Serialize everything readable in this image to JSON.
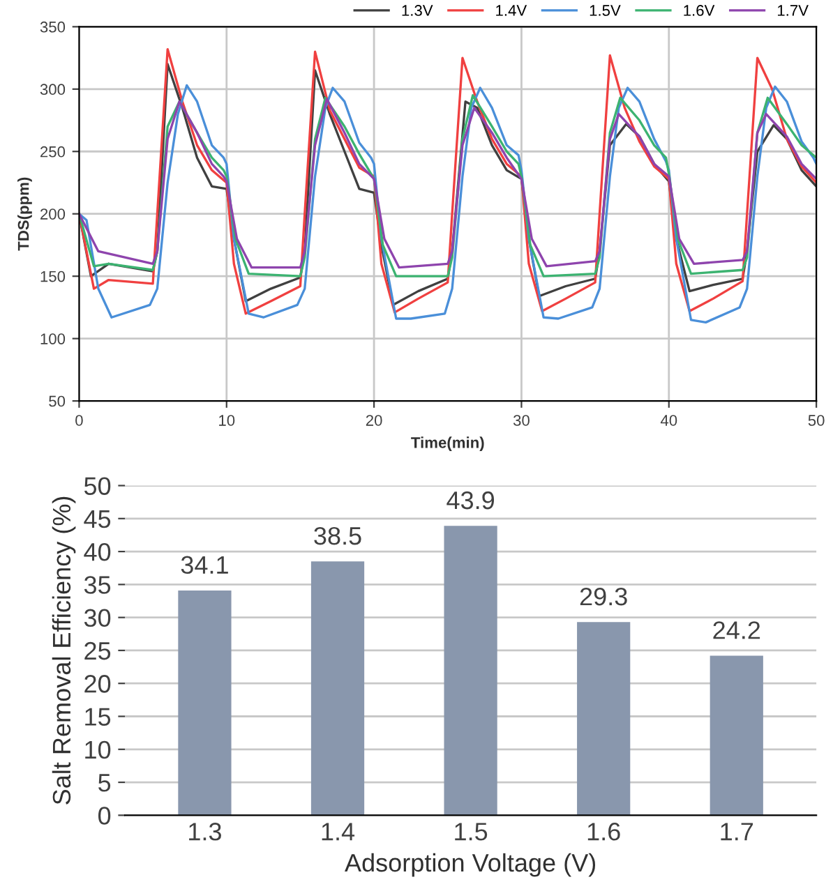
{
  "chart_data": [
    {
      "type": "line",
      "xlabel": "Time(min)",
      "ylabel": "TDS(ppm)",
      "xlim": [
        0,
        50
      ],
      "xticks": [
        0,
        10,
        20,
        30,
        40,
        50
      ],
      "ylim": [
        50,
        350
      ],
      "yticks": [
        50,
        100,
        150,
        200,
        250,
        300,
        350
      ],
      "grid": true,
      "legend": "top right",
      "marker": "none",
      "line_style": "solid",
      "series": [
        {
          "name": "1.3V",
          "color": "#404040",
          "x": [
            0,
            0.8,
            2,
            5,
            5.3,
            6,
            7,
            8,
            9,
            10,
            10.5,
            11.3,
            13,
            15,
            15.3,
            16,
            17,
            18,
            19,
            20,
            20.5,
            21.3,
            23,
            25,
            25.3,
            26.2,
            27,
            28,
            29,
            30,
            30.5,
            31.2,
            33,
            35,
            35.3,
            36,
            37.1,
            38,
            39,
            40,
            40.5,
            41.4,
            43,
            45,
            45.3,
            46,
            47.1,
            48,
            49,
            50
          ],
          "values": [
            200,
            150,
            160,
            154,
            170,
            320,
            285,
            245,
            222,
            220,
            180,
            130,
            140,
            149,
            170,
            315,
            280,
            250,
            220,
            217,
            175,
            127,
            138,
            148,
            170,
            290,
            285,
            255,
            235,
            228,
            180,
            134,
            142,
            148,
            170,
            255,
            272,
            262,
            240,
            226,
            180,
            138,
            143,
            148,
            170,
            250,
            271,
            260,
            235,
            222
          ]
        },
        {
          "name": "1.4V",
          "color": "#f04040",
          "x": [
            0,
            1,
            2,
            5,
            5.3,
            6,
            7,
            8,
            9,
            10,
            10.5,
            11.3,
            13,
            15,
            15.3,
            16,
            17,
            18,
            19,
            20,
            20.5,
            21.4,
            23,
            25,
            25.3,
            26,
            27,
            28,
            29,
            30,
            30.5,
            31.4,
            33,
            35,
            35.3,
            36,
            37,
            38,
            39,
            40,
            40.5,
            41.4,
            43,
            45,
            45.3,
            46,
            47,
            48,
            49,
            50
          ],
          "values": [
            200,
            140,
            147,
            144,
            200,
            332,
            290,
            255,
            235,
            225,
            160,
            120,
            130,
            142,
            200,
            330,
            283,
            260,
            237,
            230,
            160,
            121,
            132,
            145,
            200,
            325,
            290,
            260,
            240,
            230,
            160,
            122,
            132,
            145,
            200,
            327,
            285,
            258,
            238,
            228,
            160,
            122,
            132,
            146,
            200,
            325,
            300,
            260,
            238,
            225
          ]
        },
        {
          "name": "1.5V",
          "color": "#4a8fd9",
          "x": [
            0,
            0.5,
            1.3,
            2.2,
            4.8,
            5.3,
            6,
            6.7,
            7.3,
            8,
            9,
            9.8,
            10,
            10.5,
            11.5,
            12.5,
            14.8,
            15.3,
            16,
            16.7,
            17.2,
            18,
            19,
            19.8,
            20,
            20.5,
            21.5,
            22.5,
            24.8,
            25.3,
            26,
            26.6,
            27.2,
            28,
            29,
            29.8,
            30,
            30.5,
            31.5,
            32.5,
            34.8,
            35.3,
            36,
            36.6,
            37.2,
            38,
            39,
            39.8,
            40,
            40.5,
            41.5,
            42.5,
            44.8,
            45.3,
            46,
            46.6,
            47.2,
            48,
            49,
            49.8,
            50
          ],
          "values": [
            200,
            195,
            140,
            117,
            127,
            140,
            225,
            280,
            303,
            290,
            255,
            245,
            240,
            180,
            120,
            117,
            127,
            140,
            230,
            285,
            301,
            290,
            257,
            245,
            240,
            180,
            116,
            116,
            120,
            140,
            230,
            285,
            301,
            285,
            255,
            247,
            235,
            180,
            117,
            116,
            125,
            140,
            230,
            285,
            301,
            290,
            260,
            242,
            235,
            180,
            115,
            113,
            125,
            140,
            230,
            285,
            302,
            290,
            258,
            245,
            240
          ]
        },
        {
          "name": "1.6V",
          "color": "#3cb371",
          "x": [
            0,
            1,
            2,
            5,
            5.3,
            6,
            6.8,
            8,
            9,
            9.8,
            10,
            10.6,
            11.5,
            15,
            15.3,
            16,
            16.7,
            18,
            19,
            19.8,
            20,
            20.6,
            21.5,
            25,
            25.3,
            26,
            26.7,
            28,
            29,
            29.8,
            30,
            30.6,
            31.5,
            35,
            35.3,
            36,
            36.7,
            38,
            39,
            39.8,
            40,
            40.6,
            41.5,
            45,
            45.3,
            46,
            46.7,
            48,
            49,
            50
          ],
          "values": [
            200,
            158,
            160,
            155,
            170,
            270,
            290,
            265,
            245,
            235,
            230,
            180,
            152,
            150,
            165,
            260,
            293,
            270,
            248,
            232,
            228,
            175,
            150,
            150,
            165,
            260,
            295,
            270,
            250,
            240,
            230,
            175,
            150,
            152,
            165,
            265,
            293,
            275,
            255,
            245,
            232,
            180,
            152,
            155,
            165,
            265,
            293,
            272,
            255,
            245
          ]
        },
        {
          "name": "1.7V",
          "color": "#8e44ad",
          "x": [
            0,
            1.3,
            5,
            5.3,
            6,
            6.8,
            8,
            9,
            9.8,
            10,
            10.7,
            11.7,
            15,
            15.3,
            16,
            16.8,
            18,
            19,
            20,
            20.7,
            21.7,
            25,
            25.3,
            26,
            26.8,
            28,
            29,
            30,
            30.7,
            31.7,
            35,
            35.3,
            36,
            36.6,
            38,
            39,
            40,
            40.7,
            41.7,
            45,
            45.3,
            46,
            46.6,
            48,
            49,
            50
          ],
          "values": [
            200,
            170,
            160,
            170,
            260,
            290,
            265,
            240,
            230,
            226,
            180,
            157,
            157,
            170,
            255,
            292,
            265,
            240,
            228,
            180,
            157,
            160,
            170,
            255,
            285,
            265,
            245,
            228,
            180,
            158,
            162,
            170,
            260,
            280,
            262,
            240,
            230,
            180,
            160,
            163,
            170,
            265,
            280,
            262,
            240,
            228
          ]
        }
      ]
    },
    {
      "type": "bar",
      "xlabel": "Adsorption Voltage (V)",
      "ylabel": "Salt Removal Efficiency (%)",
      "categories": [
        "1.3",
        "1.4",
        "1.5",
        "1.6",
        "1.7"
      ],
      "ylim": [
        0,
        50
      ],
      "yticks": [
        0,
        5,
        10,
        15,
        20,
        25,
        30,
        35,
        40,
        45,
        50
      ],
      "grid": "y",
      "data_labels": true,
      "series": [
        {
          "color": "#8997ad",
          "values": [
            34.1,
            38.5,
            43.9,
            29.3,
            24.2
          ]
        }
      ]
    }
  ]
}
